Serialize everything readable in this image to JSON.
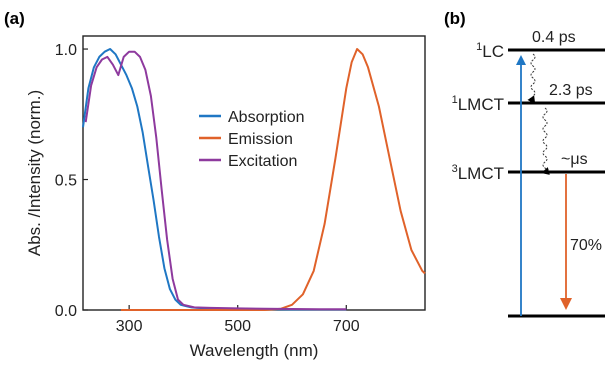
{
  "panels": {
    "a_label": "(a)",
    "b_label": "(b)"
  },
  "chart_data": [
    {
      "type": "line",
      "xlabel": "Wavelength (nm)",
      "ylabel": "Abs. /Intensity (norm.)",
      "xlim": [
        215,
        845
      ],
      "ylim": [
        0,
        1.05
      ],
      "x_ticks": [
        300,
        500,
        700
      ],
      "y_ticks": [
        0.0,
        0.5,
        1.0
      ],
      "x_tick_labels": [
        "300",
        "500",
        "700"
      ],
      "y_tick_labels": [
        "0.0",
        "0.5",
        "1.0"
      ],
      "grid": false,
      "legend_position": "center",
      "series": [
        {
          "name": "Absorption",
          "color": "#1f77c4",
          "x": [
            215,
            225,
            235,
            245,
            255,
            265,
            275,
            285,
            295,
            305,
            315,
            325,
            335,
            345,
            355,
            365,
            375,
            385,
            395,
            405,
            415,
            425,
            450,
            500,
            550,
            600,
            650,
            700
          ],
          "y": [
            0.7,
            0.85,
            0.93,
            0.97,
            0.99,
            1.0,
            0.98,
            0.94,
            0.9,
            0.85,
            0.78,
            0.68,
            0.55,
            0.42,
            0.28,
            0.16,
            0.08,
            0.04,
            0.02,
            0.015,
            0.01,
            0.008,
            0.006,
            0.004,
            0.003,
            0.002,
            0.002,
            0.002
          ]
        },
        {
          "name": "Emission",
          "color": "#e0622a",
          "x": [
            285,
            350,
            400,
            450,
            500,
            550,
            580,
            600,
            620,
            640,
            660,
            680,
            700,
            710,
            720,
            730,
            740,
            760,
            780,
            800,
            820,
            840,
            845
          ],
          "y": [
            0.0,
            0.0,
            0.0,
            0.0,
            0.0,
            0.0,
            0.005,
            0.02,
            0.06,
            0.15,
            0.33,
            0.58,
            0.85,
            0.95,
            1.0,
            0.98,
            0.93,
            0.78,
            0.58,
            0.38,
            0.23,
            0.15,
            0.14
          ]
        },
        {
          "name": "Excitation",
          "color": "#8e3a9e",
          "x": [
            220,
            230,
            240,
            250,
            260,
            270,
            280,
            290,
            300,
            310,
            320,
            330,
            340,
            350,
            360,
            370,
            380,
            390,
            400,
            420,
            450,
            500,
            550,
            600,
            650,
            700
          ],
          "y": [
            0.72,
            0.86,
            0.93,
            0.96,
            0.97,
            0.94,
            0.9,
            0.97,
            0.99,
            0.99,
            0.97,
            0.92,
            0.82,
            0.66,
            0.46,
            0.27,
            0.12,
            0.04,
            0.02,
            0.01,
            0.008,
            0.006,
            0.005,
            0.004,
            0.003,
            0.003
          ]
        }
      ]
    },
    {
      "type": "diagram",
      "levels": [
        {
          "name": "1LC",
          "superscript": "1",
          "base": "LC"
        },
        {
          "name": "1LMCT",
          "superscript": "1",
          "base": "LMCT"
        },
        {
          "name": "3LMCT",
          "superscript": "3",
          "base": "LMCT"
        }
      ],
      "annotations": {
        "t1": "0.4 ps",
        "t2": "2.3 ps",
        "t3": "~μs",
        "yield": "70%"
      },
      "colors": {
        "excitation_arrow": "#1f77c4",
        "emission_arrow": "#e0622a",
        "levels": "#000000"
      }
    }
  ]
}
